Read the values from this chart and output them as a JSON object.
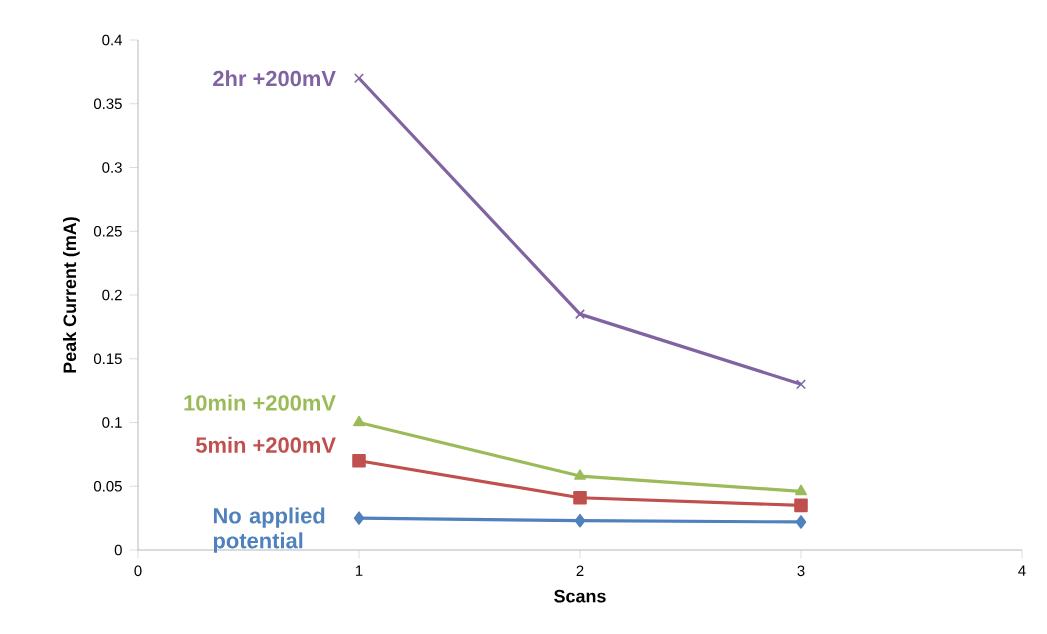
{
  "chart_data": {
    "type": "line",
    "xlabel": "Scans",
    "ylabel": "Peak Current (mA)",
    "x": [
      1,
      2,
      3
    ],
    "xlim": [
      0,
      4
    ],
    "xticks": [
      0,
      1,
      2,
      3,
      4
    ],
    "ylim": [
      0,
      0.4
    ],
    "yticks": [
      0,
      0.05,
      0.1,
      0.15,
      0.2,
      0.25,
      0.3,
      0.35,
      0.4
    ],
    "grid": false,
    "legend": false,
    "line_style": "solid",
    "series": [
      {
        "name": "No applied potential",
        "color": "#4f81bd",
        "marker": "diamond",
        "values": [
          0.025,
          0.023,
          0.022
        ]
      },
      {
        "name": "5min +200mV",
        "color": "#c0504d",
        "marker": "square",
        "values": [
          0.07,
          0.041,
          0.035
        ]
      },
      {
        "name": "10min +200mV",
        "color": "#9bbb59",
        "marker": "triangle",
        "values": [
          0.1,
          0.058,
          0.046
        ]
      },
      {
        "name": "2hr +200mV",
        "color": "#8064a2",
        "marker": "cross",
        "values": [
          0.37,
          0.185,
          0.13
        ]
      }
    ]
  }
}
